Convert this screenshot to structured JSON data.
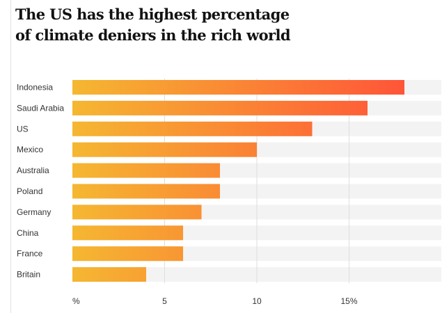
{
  "title_lines": [
    "The US has the highest percentage",
    "of climate deniers in the rich world"
  ],
  "chart_data": {
    "type": "bar",
    "orientation": "horizontal",
    "title": "The US has the highest percentage of climate deniers in the rich world",
    "categories": [
      "Indonesia",
      "Saudi Arabia",
      "US",
      "Mexico",
      "Australia",
      "Poland",
      "Germany",
      "China",
      "France",
      "Britain"
    ],
    "values": [
      18,
      16,
      13,
      10,
      8,
      8,
      7,
      6,
      6,
      4
    ],
    "xlim": [
      0,
      20
    ],
    "x_ticks": [
      {
        "value": 0,
        "label": "%"
      },
      {
        "value": 5,
        "label": "5"
      },
      {
        "value": 10,
        "label": "10"
      },
      {
        "value": 15,
        "label": "15%"
      }
    ],
    "grid": true,
    "legend": "none",
    "colors": {
      "bar_start": "#f5b731",
      "bar_end": "#ff5538",
      "track": "#f3f3f3",
      "gridline": "#dedede",
      "label": "#333333",
      "title": "#121212"
    }
  }
}
